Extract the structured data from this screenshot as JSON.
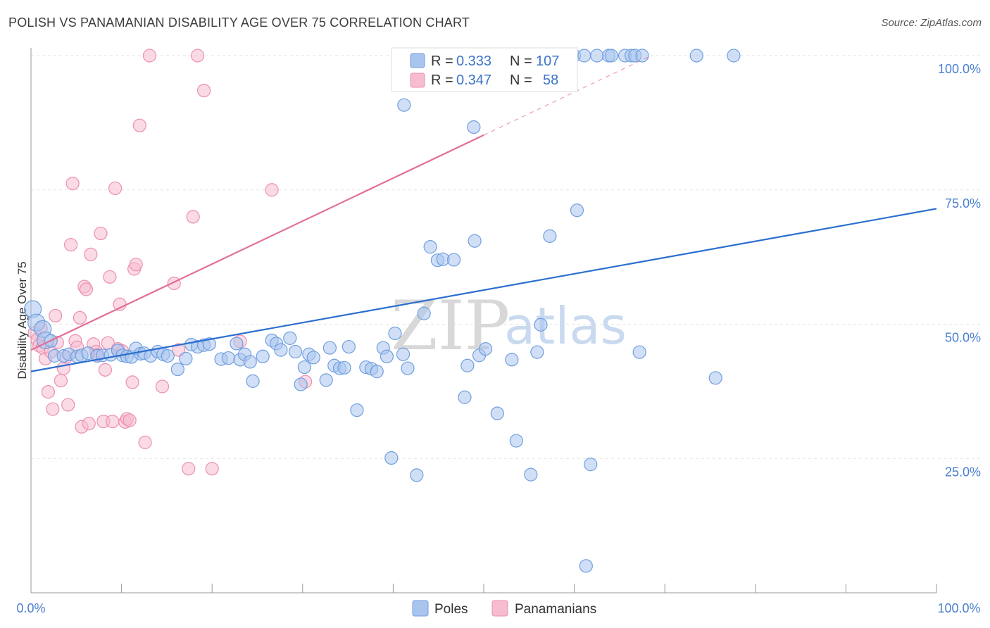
{
  "title": "POLISH VS PANAMANIAN DISABILITY AGE OVER 75 CORRELATION CHART",
  "source": "Source: ZipAtlas.com",
  "watermark": {
    "zip": "ZIP",
    "atlas": "atlas"
  },
  "legend": {
    "series1": {
      "r_label": "R =",
      "r_value": "0.333",
      "n_label": "N =",
      "n_value": "107"
    },
    "series2": {
      "r_label": "R =",
      "r_value": "0.347",
      "n_label": "N =",
      "n_value": "58"
    }
  },
  "bottom_legend": {
    "poles": "Poles",
    "panamanians": "Panamanians"
  },
  "colors": {
    "poles_fill": "#a9c5ee",
    "poles_stroke": "#6f9fe0",
    "poles_line": "#2b6fcf",
    "pan_fill": "#f6bcd0",
    "pan_stroke": "#ec8fb0",
    "pan_line": "#e26f99",
    "grid": "#e3e3e3",
    "tick_text": "#4a7fd0"
  },
  "chart_data": {
    "type": "scatter",
    "title": "POLISH VS PANAMANIAN DISABILITY AGE OVER 75 CORRELATION CHART",
    "xlabel": "",
    "ylabel": "Disability Age Over 75",
    "xlim": [
      0,
      100
    ],
    "ylim": [
      0,
      104
    ],
    "x_tick_labels": {
      "left": "0.0%",
      "right": "100.0%"
    },
    "y_ticks": [
      {
        "value": 25,
        "label": "25.0%"
      },
      {
        "value": 50,
        "label": "50.0%"
      },
      {
        "value": 75,
        "label": "75.0%"
      },
      {
        "value": 100,
        "label": "100.0%"
      }
    ],
    "series": [
      {
        "name": "Poles",
        "r": 0.333,
        "n": 107,
        "trend": {
          "x0": 0,
          "y0": 41.2,
          "x1": 100,
          "y1": 71.5
        },
        "points": [
          [
            0.2,
            52.8
          ],
          [
            0.6,
            50.3
          ],
          [
            1.3,
            49.1
          ],
          [
            1.6,
            47.0
          ],
          [
            2.2,
            46.9
          ],
          [
            2.6,
            44.1
          ],
          [
            3.6,
            44.1
          ],
          [
            4.2,
            44.4
          ],
          [
            5.1,
            44.0
          ],
          [
            5.6,
            44.2
          ],
          [
            6.3,
            44.6
          ],
          [
            7.3,
            44.1
          ],
          [
            7.9,
            44.2
          ],
          [
            8.8,
            44.3
          ],
          [
            9.6,
            45.1
          ],
          [
            10.1,
            44.2
          ],
          [
            10.6,
            44.0
          ],
          [
            11.1,
            43.9
          ],
          [
            11.6,
            45.5
          ],
          [
            12.1,
            44.5
          ],
          [
            12.5,
            44.6
          ],
          [
            13.2,
            44.1
          ],
          [
            14.0,
            44.9
          ],
          [
            14.6,
            44.4
          ],
          [
            15.1,
            44.1
          ],
          [
            16.2,
            41.6
          ],
          [
            17.1,
            43.6
          ],
          [
            17.7,
            46.2
          ],
          [
            18.4,
            45.8
          ],
          [
            19.1,
            46.1
          ],
          [
            19.7,
            46.3
          ],
          [
            21.0,
            43.5
          ],
          [
            21.8,
            43.7
          ],
          [
            22.7,
            46.4
          ],
          [
            23.1,
            43.4
          ],
          [
            23.6,
            44.4
          ],
          [
            24.2,
            43.0
          ],
          [
            24.5,
            39.4
          ],
          [
            25.6,
            44.0
          ],
          [
            26.6,
            47.0
          ],
          [
            27.1,
            46.4
          ],
          [
            27.6,
            45.2
          ],
          [
            28.6,
            47.4
          ],
          [
            29.2,
            44.9
          ],
          [
            29.8,
            38.8
          ],
          [
            30.2,
            42.0
          ],
          [
            30.7,
            44.4
          ],
          [
            31.2,
            43.8
          ],
          [
            32.6,
            39.6
          ],
          [
            33.0,
            45.6
          ],
          [
            33.5,
            42.3
          ],
          [
            34.1,
            41.8
          ],
          [
            34.6,
            41.9
          ],
          [
            35.1,
            45.8
          ],
          [
            36.0,
            34.0
          ],
          [
            37.0,
            42.0
          ],
          [
            37.6,
            41.7
          ],
          [
            38.2,
            41.2
          ],
          [
            38.9,
            45.6
          ],
          [
            39.3,
            44.0
          ],
          [
            39.8,
            25.1
          ],
          [
            40.2,
            48.3
          ],
          [
            41.1,
            44.4
          ],
          [
            41.6,
            41.8
          ],
          [
            42.6,
            21.9
          ],
          [
            43.4,
            52.0
          ],
          [
            44.1,
            64.4
          ],
          [
            44.9,
            61.9
          ],
          [
            45.5,
            62.1
          ],
          [
            46.7,
            62.0
          ],
          [
            47.9,
            36.4
          ],
          [
            48.2,
            42.3
          ],
          [
            49.0,
            65.5
          ],
          [
            49.5,
            44.2
          ],
          [
            50.2,
            45.4
          ],
          [
            51.5,
            33.4
          ],
          [
            53.1,
            43.4
          ],
          [
            53.6,
            28.3
          ],
          [
            55.2,
            22.0
          ],
          [
            55.9,
            44.8
          ],
          [
            56.3,
            49.9
          ],
          [
            57.3,
            66.4
          ],
          [
            60.3,
            71.2
          ],
          [
            61.3,
            5.0
          ],
          [
            61.8,
            23.9
          ],
          [
            67.2,
            44.8
          ],
          [
            75.6,
            40.0
          ],
          [
            73.5,
            100.0
          ],
          [
            77.6,
            100.0
          ],
          [
            41.2,
            90.8
          ],
          [
            46.7,
            100.0
          ],
          [
            48.6,
            100.0
          ],
          [
            53.5,
            100.0
          ],
          [
            57.3,
            100.0
          ],
          [
            63.8,
            100.0
          ],
          [
            65.6,
            100.0
          ],
          [
            66.3,
            100.0
          ],
          [
            43.3,
            100.0
          ],
          [
            48.9,
            86.7
          ],
          [
            48.2,
            100.0
          ],
          [
            56.3,
            100.0
          ],
          [
            45.6,
            100.0
          ],
          [
            66.7,
            100.0
          ],
          [
            67.5,
            100.0
          ],
          [
            60.0,
            100.0
          ],
          [
            58.6,
            100.0
          ],
          [
            47.4,
            100.0
          ],
          [
            61.1,
            100.0
          ],
          [
            62.5,
            100.0
          ],
          [
            64.1,
            100.0
          ]
        ]
      },
      {
        "name": "Panamanians",
        "r": 0.347,
        "n": 58,
        "trend": {
          "x0": 0,
          "y0": 45.2,
          "x1": 50,
          "y1": 85.2
        },
        "points": [
          [
            0.4,
            48.4
          ],
          [
            0.7,
            47.1
          ],
          [
            0.9,
            46.0
          ],
          [
            1.1,
            49.2
          ],
          [
            1.3,
            45.6
          ],
          [
            1.6,
            43.6
          ],
          [
            1.9,
            37.4
          ],
          [
            2.2,
            44.9
          ],
          [
            2.4,
            34.2
          ],
          [
            2.7,
            51.6
          ],
          [
            2.9,
            46.6
          ],
          [
            3.3,
            39.5
          ],
          [
            3.6,
            41.8
          ],
          [
            3.9,
            43.9
          ],
          [
            4.1,
            35.0
          ],
          [
            4.4,
            64.8
          ],
          [
            4.6,
            76.2
          ],
          [
            4.9,
            46.9
          ],
          [
            5.1,
            45.7
          ],
          [
            5.4,
            51.2
          ],
          [
            5.6,
            30.9
          ],
          [
            5.9,
            57.0
          ],
          [
            6.1,
            56.5
          ],
          [
            6.4,
            31.5
          ],
          [
            6.6,
            63.0
          ],
          [
            6.9,
            46.3
          ],
          [
            7.2,
            44.9
          ],
          [
            7.4,
            44.3
          ],
          [
            7.7,
            66.9
          ],
          [
            8.0,
            31.9
          ],
          [
            8.2,
            41.5
          ],
          [
            8.5,
            46.5
          ],
          [
            8.7,
            58.8
          ],
          [
            9.0,
            31.9
          ],
          [
            9.3,
            75.3
          ],
          [
            9.6,
            45.4
          ],
          [
            9.8,
            53.7
          ],
          [
            10.1,
            45.0
          ],
          [
            10.4,
            31.8
          ],
          [
            10.6,
            32.4
          ],
          [
            10.9,
            32.1
          ],
          [
            11.2,
            39.2
          ],
          [
            11.4,
            60.3
          ],
          [
            11.6,
            61.1
          ],
          [
            12.0,
            87.0
          ],
          [
            12.6,
            28.0
          ],
          [
            13.1,
            100.0
          ],
          [
            14.5,
            38.4
          ],
          [
            15.8,
            57.6
          ],
          [
            16.3,
            45.2
          ],
          [
            17.4,
            23.1
          ],
          [
            17.9,
            70.0
          ],
          [
            19.1,
            93.5
          ],
          [
            18.4,
            100.0
          ],
          [
            20.0,
            23.1
          ],
          [
            23.1,
            46.8
          ],
          [
            26.6,
            75.0
          ],
          [
            30.3,
            39.3
          ]
        ]
      }
    ]
  }
}
